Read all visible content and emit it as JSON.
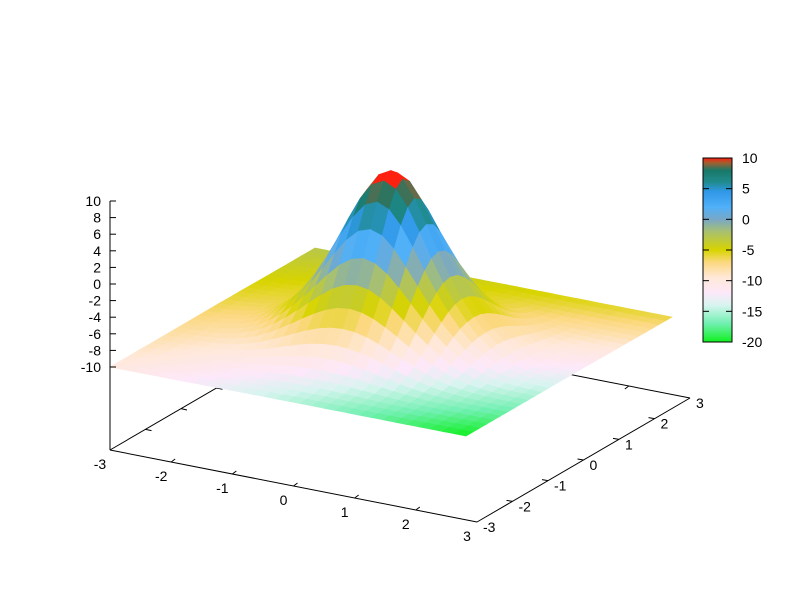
{
  "chart_data": {
    "type": "surface",
    "title": "",
    "xlabel": "",
    "ylabel": "",
    "zlabel": "",
    "xlim": [
      -3,
      3
    ],
    "ylim": [
      -3,
      3
    ],
    "zlim": [
      -20,
      10
    ],
    "cblim": [
      -20,
      10
    ],
    "x_ticks": [
      "-3",
      "-2",
      "-1",
      "0",
      "1",
      "2",
      "3"
    ],
    "y_ticks": [
      "-3",
      "-2",
      "-1",
      "0",
      "1",
      "2",
      "3"
    ],
    "z_ticks": [
      "-10",
      "-8",
      "-6",
      "-4",
      "-2",
      "0",
      "2",
      "4",
      "6",
      "8",
      "10"
    ],
    "cb_ticks": [
      "10",
      "5",
      "0",
      "-5",
      "-10",
      "-15",
      "-20"
    ],
    "surface": {
      "corner_z": {
        "x-3_y-3": -10,
        "x3_y-3": -20,
        "x3_y3": -6,
        "x-3_y3": -3
      },
      "peak_z": 9.5,
      "peak_at": [
        0,
        0
      ]
    },
    "colormap": [
      {
        "v": -20,
        "color": "#10f020"
      },
      {
        "v": -17,
        "color": "#70f0b0"
      },
      {
        "v": -14,
        "color": "#d8f4f0"
      },
      {
        "v": -12,
        "color": "#fde8fa"
      },
      {
        "v": -9.5,
        "color": "#ffe8d8"
      },
      {
        "v": -7,
        "color": "#fcd880"
      },
      {
        "v": -5,
        "color": "#d8d400"
      },
      {
        "v": -2,
        "color": "#a8c070"
      },
      {
        "v": 0,
        "color": "#78a8c8"
      },
      {
        "v": 2,
        "color": "#50b0f8"
      },
      {
        "v": 4.5,
        "color": "#3098e8"
      },
      {
        "v": 6,
        "color": "#208c90"
      },
      {
        "v": 8,
        "color": "#187868"
      },
      {
        "v": 9.2,
        "color": "#a06030"
      },
      {
        "v": 10,
        "color": "#ff2010"
      }
    ],
    "grid": false,
    "legend": "colorbar-right"
  }
}
